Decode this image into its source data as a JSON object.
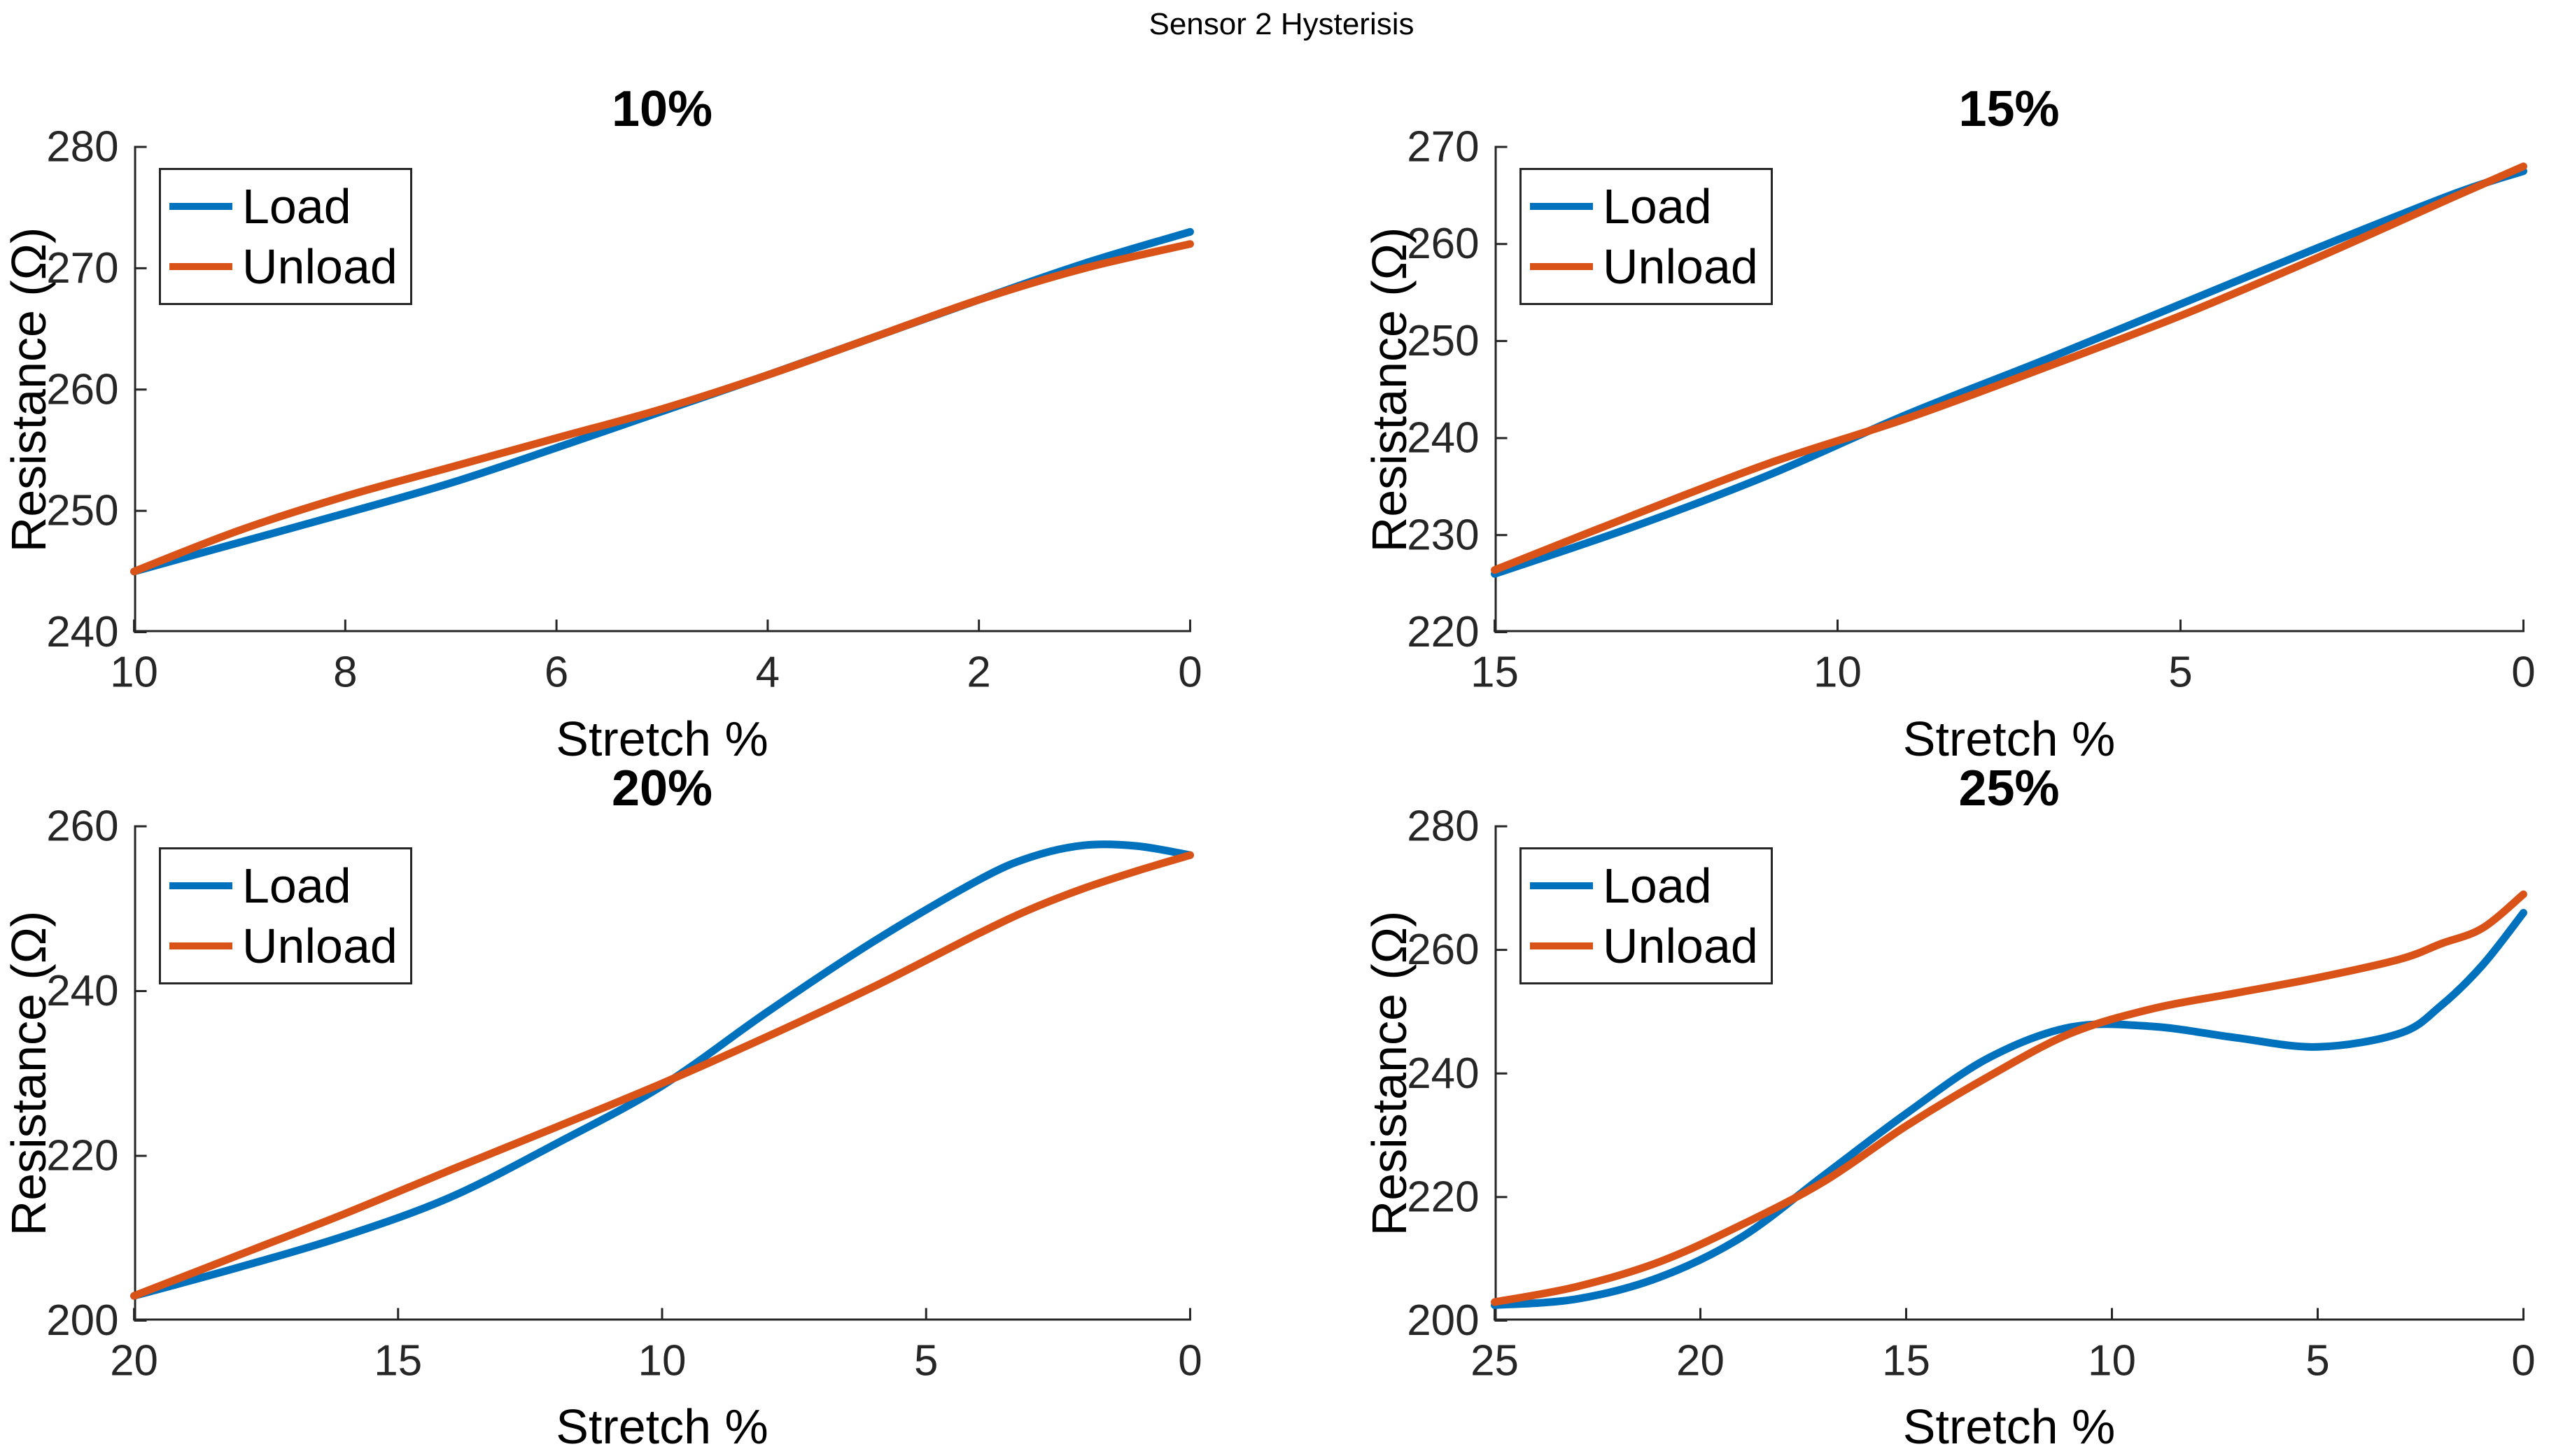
{
  "figure": {
    "title": "Sensor 2 Hysterisis"
  },
  "style": {
    "background": "#ffffff",
    "axis_color": "#262626",
    "load_color": "#0072BD",
    "unload_color": "#D95319",
    "tick_len": 18,
    "spine_width": 3,
    "curve_width": 11
  },
  "chart_data": [
    {
      "type": "line",
      "title": "10%",
      "xlabel": "Stretch %",
      "ylabel": "Resistance (Ω)",
      "x_direction": "reversed",
      "xlim": [
        10,
        0
      ],
      "ylim": [
        240,
        280
      ],
      "xticks": [
        10,
        8,
        6,
        4,
        2,
        0
      ],
      "yticks": [
        240,
        250,
        260,
        270,
        280
      ],
      "legend": {
        "position": "top-left",
        "entries": [
          "Load",
          "Unload"
        ]
      },
      "series": [
        {
          "name": "Load",
          "color": "#0072BD",
          "x": [
            10,
            9,
            8,
            7,
            6,
            5,
            4,
            3,
            2,
            1,
            0
          ],
          "y": [
            245,
            247.4,
            249.8,
            252.3,
            255.2,
            258.2,
            261.2,
            264.3,
            267.4,
            270.4,
            273
          ]
        },
        {
          "name": "Unload",
          "color": "#D95319",
          "x": [
            10,
            9,
            8,
            7,
            6,
            5,
            4,
            3,
            2,
            1,
            0
          ],
          "y": [
            245,
            248.4,
            251.2,
            253.6,
            256,
            258.4,
            261.2,
            264.3,
            267.4,
            270,
            272
          ]
        }
      ]
    },
    {
      "type": "line",
      "title": "15%",
      "xlabel": "Stretch %",
      "ylabel": "Resistance (Ω)",
      "x_direction": "reversed",
      "xlim": [
        15,
        0
      ],
      "ylim": [
        220,
        270
      ],
      "xticks": [
        15,
        10,
        5,
        0
      ],
      "yticks": [
        220,
        230,
        240,
        250,
        260,
        270
      ],
      "legend": {
        "position": "top-left",
        "entries": [
          "Load",
          "Unload"
        ]
      },
      "series": [
        {
          "name": "Load",
          "color": "#0072BD",
          "x": [
            15,
            13,
            11,
            9,
            7,
            5,
            3,
            1,
            0
          ],
          "y": [
            226,
            230.8,
            236.2,
            242.4,
            248,
            253.8,
            259.6,
            265.2,
            267.5
          ]
        },
        {
          "name": "Unload",
          "color": "#D95319",
          "x": [
            15,
            13,
            11,
            9,
            7,
            5,
            3,
            1,
            0
          ],
          "y": [
            226.4,
            232,
            237.4,
            242,
            247.2,
            252.6,
            258.6,
            264.9,
            268
          ]
        }
      ]
    },
    {
      "type": "line",
      "title": "20%",
      "xlabel": "Stretch %",
      "ylabel": "Resistance (Ω)",
      "x_direction": "reversed",
      "xlim": [
        20,
        0
      ],
      "ylim": [
        200,
        260
      ],
      "xticks": [
        20,
        15,
        10,
        5,
        0
      ],
      "yticks": [
        200,
        220,
        240,
        260
      ],
      "legend": {
        "position": "top-left",
        "entries": [
          "Load",
          "Unload"
        ]
      },
      "series": [
        {
          "name": "Load",
          "color": "#0072BD",
          "x": [
            20,
            18,
            16,
            14,
            12,
            10,
            8,
            6,
            4,
            3,
            2,
            1,
            0
          ],
          "y": [
            203,
            206.5,
            210.3,
            215,
            221.5,
            228.5,
            237.5,
            246,
            253.5,
            256.3,
            257.7,
            257.6,
            256.5
          ]
        },
        {
          "name": "Unload",
          "color": "#D95319",
          "x": [
            20,
            18,
            16,
            14,
            12,
            10,
            8,
            6,
            4,
            3,
            2,
            1,
            0
          ],
          "y": [
            203,
            208,
            213,
            218.3,
            223.5,
            228.8,
            234.5,
            240.5,
            247,
            250,
            252.5,
            254.6,
            256.5
          ]
        }
      ]
    },
    {
      "type": "line",
      "title": "25%",
      "xlabel": "Stretch %",
      "ylabel": "Resistance (Ω)",
      "x_direction": "reversed",
      "xlim": [
        25,
        0
      ],
      "ylim": [
        200,
        280
      ],
      "xticks": [
        25,
        20,
        15,
        10,
        5,
        0
      ],
      "yticks": [
        200,
        220,
        240,
        260,
        280
      ],
      "legend": {
        "position": "top-left",
        "entries": [
          "Load",
          "Unload"
        ]
      },
      "series": [
        {
          "name": "Load",
          "color": "#0072BD",
          "x": [
            25,
            23,
            21,
            19,
            17,
            15,
            13,
            11,
            9,
            7,
            5,
            3,
            2,
            1,
            0
          ],
          "y": [
            202.5,
            203.5,
            207,
            213.5,
            223.5,
            233.5,
            242.5,
            247.5,
            247.6,
            245.8,
            244.3,
            246.5,
            251,
            257.5,
            266
          ]
        },
        {
          "name": "Unload",
          "color": "#D95319",
          "x": [
            25,
            23,
            21,
            19,
            17,
            15,
            13,
            11,
            9,
            7,
            5,
            3,
            2,
            1,
            0
          ],
          "y": [
            203,
            205.5,
            209.5,
            215.5,
            222.5,
            231.5,
            239.5,
            246.5,
            250.5,
            253,
            255.5,
            258.5,
            261,
            263.5,
            269
          ]
        }
      ]
    }
  ]
}
